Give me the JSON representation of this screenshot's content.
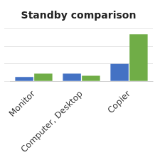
{
  "chart_data": {
    "type": "bar",
    "title": "Standby comparison",
    "categories": [
      "Monitor",
      "Computer, Desktop",
      "Copier"
    ],
    "series": [
      {
        "color": "#4472C4",
        "values": [
          1.2,
          2.2,
          5.0
        ]
      },
      {
        "color": "#70AD47",
        "values": [
          2.2,
          1.6,
          13.5
        ]
      }
    ],
    "ylim": [
      0,
      15
    ],
    "yticks": [
      0,
      5,
      10,
      15
    ],
    "grid": true,
    "tick_labels": "x"
  }
}
